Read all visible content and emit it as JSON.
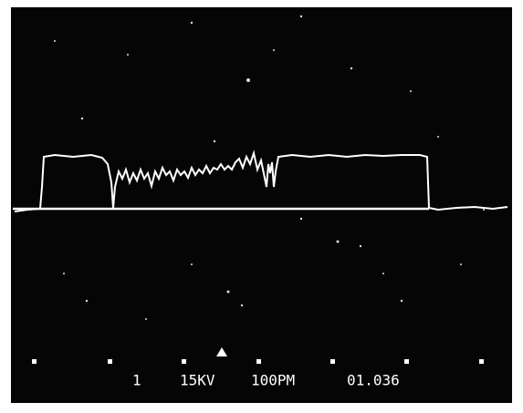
{
  "caption": {
    "detector": "1",
    "voltage": "15KV",
    "scale": "100PM",
    "frame": "01.036"
  }
}
